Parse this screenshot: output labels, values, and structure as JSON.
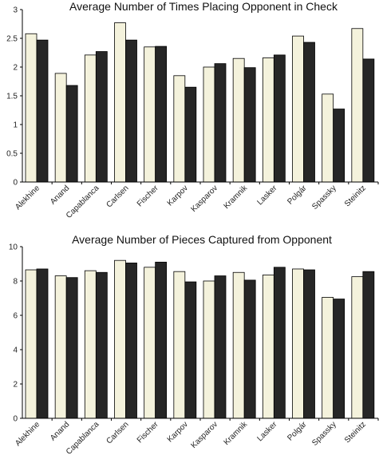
{
  "chart_data": [
    {
      "type": "bar",
      "title": "Average Number of Times Placing Opponent in Check",
      "categories": [
        "Alekhine",
        "Anand",
        "Capablanca",
        "Carlsen",
        "Fischer",
        "Karpov",
        "Kasparov",
        "Kramnik",
        "Lasker",
        "Polgár",
        "Spassky",
        "Steinitz"
      ],
      "series": [
        {
          "values": [
            2.58,
            1.89,
            2.21,
            2.77,
            2.35,
            1.85,
            2.0,
            2.15,
            2.16,
            2.54,
            1.53,
            2.67
          ],
          "color": "#f4f2dc"
        },
        {
          "values": [
            2.47,
            1.68,
            2.27,
            2.47,
            2.36,
            1.65,
            2.06,
            1.99,
            2.21,
            2.43,
            1.27,
            2.14
          ],
          "color": "#262626"
        }
      ],
      "yticks": [
        "0",
        "0.5",
        "1",
        "1.5",
        "2",
        "2.5",
        "3"
      ],
      "ylim": [
        0,
        3
      ],
      "grid": false,
      "legend": "none"
    },
    {
      "type": "bar",
      "title": "Average Number of Pieces Captured from Opponent",
      "categories": [
        "Alekhine",
        "Anand",
        "Capablanca",
        "Carlsen",
        "Fischer",
        "Karpov",
        "Kasparov",
        "Kramnik",
        "Lasker",
        "Polgár",
        "Spassky",
        "Steinitz"
      ],
      "series": [
        {
          "values": [
            8.65,
            8.3,
            8.6,
            9.2,
            8.8,
            8.55,
            8.0,
            8.5,
            8.35,
            8.7,
            7.05,
            8.25
          ],
          "color": "#f4f2dc"
        },
        {
          "values": [
            8.7,
            8.2,
            8.5,
            9.05,
            9.1,
            7.95,
            8.3,
            8.05,
            8.8,
            8.65,
            6.95,
            8.55
          ],
          "color": "#262626"
        }
      ],
      "yticks": [
        "0",
        "2",
        "4",
        "6",
        "8",
        "10"
      ],
      "ylim": [
        0,
        10
      ],
      "grid": false,
      "legend": "none"
    }
  ]
}
